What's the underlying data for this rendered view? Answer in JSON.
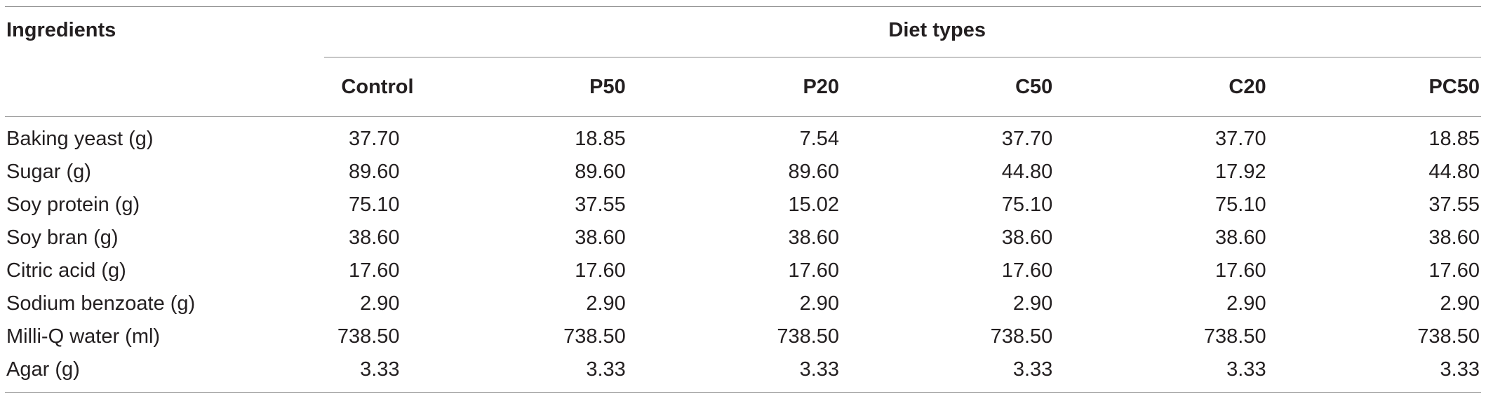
{
  "table": {
    "headers": {
      "ingredients": "Ingredients",
      "group": "Diet types",
      "columns": [
        "Control",
        "P50",
        "P20",
        "C50",
        "C20",
        "PC50"
      ]
    },
    "rows": [
      {
        "label": "Baking yeast (g)",
        "values": [
          "37.70",
          "18.85",
          "7.54",
          "37.70",
          "37.70",
          "18.85"
        ]
      },
      {
        "label": "Sugar (g)",
        "values": [
          "89.60",
          "89.60",
          "89.60",
          "44.80",
          "17.92",
          "44.80"
        ]
      },
      {
        "label": "Soy protein (g)",
        "values": [
          "75.10",
          "37.55",
          "15.02",
          "75.10",
          "75.10",
          "37.55"
        ]
      },
      {
        "label": "Soy bran (g)",
        "values": [
          "38.60",
          "38.60",
          "38.60",
          "38.60",
          "38.60",
          "38.60"
        ]
      },
      {
        "label": "Citric acid (g)",
        "values": [
          "17.60",
          "17.60",
          "17.60",
          "17.60",
          "17.60",
          "17.60"
        ]
      },
      {
        "label": "Sodium benzoate (g)",
        "values": [
          "2.90",
          "2.90",
          "2.90",
          "2.90",
          "2.90",
          "2.90"
        ]
      },
      {
        "label": "Milli-Q water (ml)",
        "values": [
          "738.50",
          "738.50",
          "738.50",
          "738.50",
          "738.50",
          "738.50"
        ]
      },
      {
        "label": "Agar (g)",
        "values": [
          "3.33",
          "3.33",
          "3.33",
          "3.33",
          "3.33",
          "3.33"
        ]
      }
    ]
  }
}
